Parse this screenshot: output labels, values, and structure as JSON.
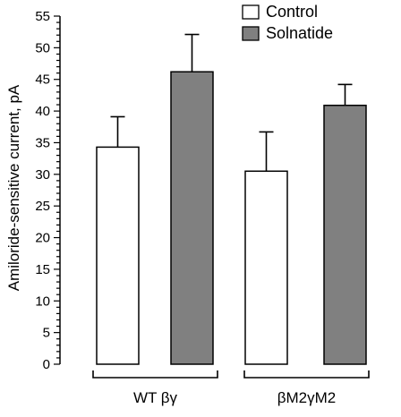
{
  "chart_data": {
    "type": "bar",
    "title": "",
    "xlabel": "",
    "ylabel": "Amiloride-sensitive current, pA",
    "ylim": [
      0,
      55
    ],
    "yticks": [
      0,
      5,
      10,
      15,
      20,
      25,
      30,
      35,
      40,
      45,
      50,
      55
    ],
    "categories": [
      "WT βγ",
      "βM2γM2"
    ],
    "series": [
      {
        "name": "Control",
        "values": [
          34.3,
          30.5
        ],
        "errors": [
          4.8,
          6.2
        ],
        "color": "#ffffff"
      },
      {
        "name": "Solnatide",
        "values": [
          46.2,
          40.9
        ],
        "errors": [
          5.9,
          3.3
        ],
        "color": "#808080"
      }
    ],
    "grid": false,
    "legend_position": "top-right",
    "error_bars": "upper"
  }
}
